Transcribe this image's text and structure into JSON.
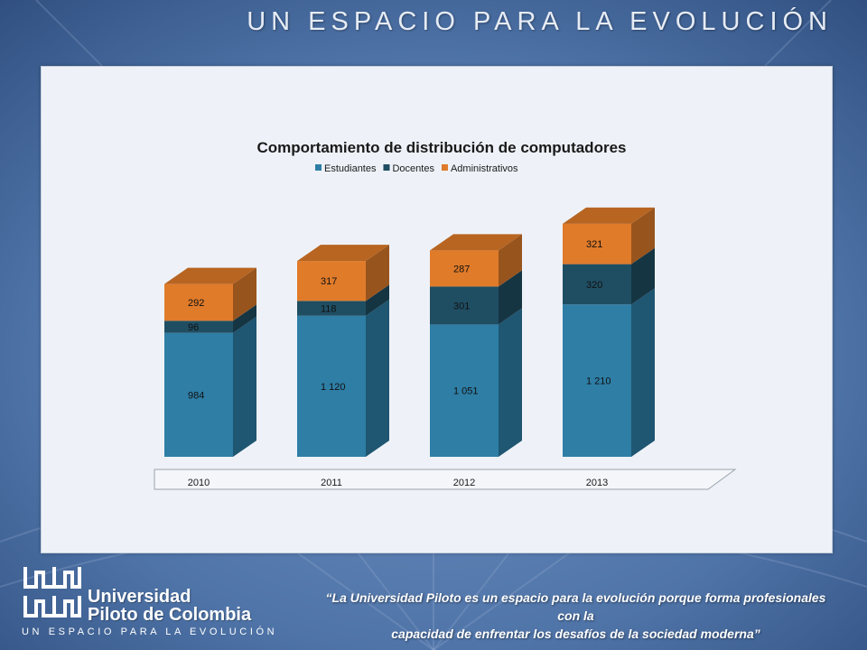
{
  "slide": {
    "header_tagline": "UN ESPACIO PARA LA EVOLUCIÓN",
    "logo": {
      "line1": "Universidad",
      "line2": "Piloto de Colombia",
      "tagline": "UN ESPACIO PARA LA EVOLUCIÓN"
    },
    "quote_line1": "“La Universidad Piloto es un espacio para la evolución porque forma profesionales con la",
    "quote_line2": "capacidad de enfrentar los desafíos de la sociedad moderna”"
  },
  "colors": {
    "background": "#4a6d9e",
    "panel": "#eef2f8",
    "estudiantes": "#2e7ea6",
    "docentes": "#1f4e63",
    "administrativos": "#e07b2a"
  },
  "chart_data": {
    "type": "bar",
    "stacked": true,
    "three_d": true,
    "title": "Comportamiento de distribución de computadores",
    "legend_position": "top",
    "categories": [
      "2010",
      "2011",
      "2012",
      "2013"
    ],
    "series": [
      {
        "name": "Estudiantes",
        "values": [
          984,
          1120,
          1051,
          1210
        ],
        "labels": [
          "984",
          "1 120",
          "1 051",
          "1 210"
        ],
        "color": "#2e7ea6"
      },
      {
        "name": "Docentes",
        "values": [
          96,
          118,
          301,
          320
        ],
        "labels": [
          "96",
          "118",
          "301",
          "320"
        ],
        "color": "#1f4e63"
      },
      {
        "name": "Administrativos",
        "values": [
          292,
          317,
          287,
          321
        ],
        "labels": [
          "292",
          "317",
          "287",
          "321"
        ],
        "color": "#e07b2a"
      }
    ],
    "ylim": [
      0,
      1900
    ],
    "grid": false
  }
}
